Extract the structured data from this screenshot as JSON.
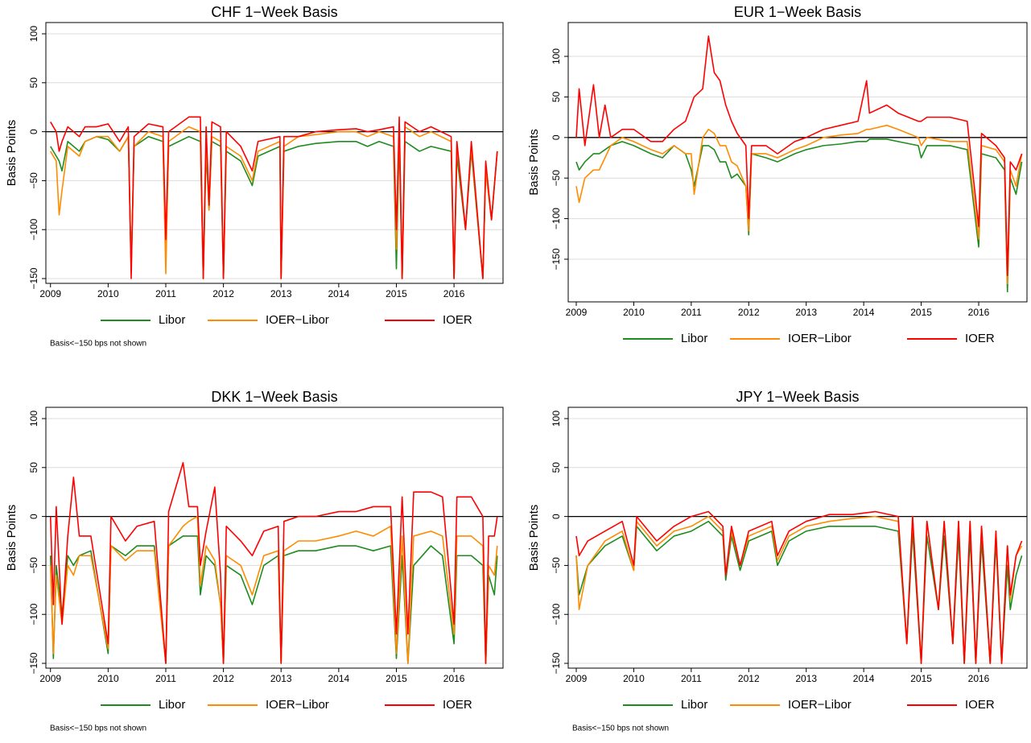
{
  "chart_data": [
    {
      "type": "line",
      "title": "CHF 1−Week Basis",
      "y_label": "Basis Points",
      "note": "Basis<−150 bps not shown",
      "xlim": [
        2008.92,
        2016.85
      ],
      "ylim": [
        -154.9,
        111.5
      ],
      "xticks": [
        2009,
        2010,
        2011,
        2012,
        2013,
        2014,
        2015,
        2016
      ],
      "yticks": [
        {
          "value": -150,
          "label": "−150"
        },
        {
          "value": -100,
          "label": "−100"
        },
        {
          "value": -50,
          "label": "−50"
        },
        0,
        50,
        100
      ],
      "grid": true,
      "zero_line": true,
      "x": [
        2009.0,
        2009.1,
        2009.15,
        2009.2,
        2009.3,
        2009.5,
        2009.6,
        2009.8,
        2010.0,
        2010.2,
        2010.35,
        2010.4,
        2010.45,
        2010.7,
        2010.95,
        2011.0,
        2011.05,
        2011.4,
        2011.6,
        2011.65,
        2011.7,
        2011.75,
        2011.8,
        2011.95,
        2012.0,
        2012.05,
        2012.3,
        2012.5,
        2012.6,
        2012.98,
        2013.0,
        2013.05,
        2013.3,
        2013.6,
        2014.0,
        2014.3,
        2014.5,
        2014.7,
        2014.95,
        2015.0,
        2015.05,
        2015.1,
        2015.15,
        2015.4,
        2015.6,
        2015.95,
        2016.0,
        2016.05,
        2016.2,
        2016.3,
        2016.5,
        2016.55,
        2016.65,
        2016.75
      ],
      "series": [
        {
          "name": "Libor",
          "color": "#1e8c1e",
          "values": [
            -15,
            -25,
            -30,
            -40,
            -10,
            -20,
            -10,
            -5,
            -8,
            -20,
            -5,
            -140,
            -15,
            -5,
            -10,
            -130,
            -15,
            -5,
            -10,
            -150,
            -20,
            -80,
            -10,
            -15,
            -150,
            -20,
            -30,
            -55,
            -25,
            -15,
            -150,
            -20,
            -15,
            -12,
            -10,
            -10,
            -15,
            -10,
            -15,
            -140,
            -5,
            -150,
            -10,
            -20,
            -15,
            -20,
            -150,
            -25,
            -100,
            -20,
            -150,
            -40,
            -90,
            -20
          ]
        },
        {
          "name": "IOER−Libor",
          "color": "#ff8c00",
          "values": [
            -20,
            -30,
            -85,
            -60,
            -15,
            -25,
            -10,
            -5,
            -5,
            -20,
            -5,
            -140,
            -15,
            0,
            -5,
            -145,
            -10,
            5,
            0,
            -150,
            -10,
            -80,
            -5,
            -10,
            -150,
            -15,
            -25,
            -50,
            -20,
            -10,
            -150,
            -15,
            -5,
            -3,
            0,
            0,
            -5,
            0,
            -5,
            -120,
            10,
            -150,
            5,
            -5,
            0,
            -10,
            -150,
            -15,
            -100,
            -15,
            -150,
            -40,
            -90,
            -20
          ]
        },
        {
          "name": "IOER",
          "color": "#ff0000",
          "values": [
            10,
            0,
            -20,
            -10,
            5,
            -5,
            5,
            5,
            8,
            -10,
            5,
            -150,
            -5,
            8,
            5,
            -110,
            0,
            15,
            15,
            -150,
            5,
            -75,
            10,
            5,
            -150,
            0,
            -15,
            -40,
            -10,
            -5,
            -150,
            -5,
            -5,
            0,
            2,
            3,
            0,
            2,
            5,
            -100,
            15,
            -150,
            10,
            0,
            5,
            -5,
            -150,
            -10,
            -100,
            -10,
            -150,
            -30,
            -90,
            -20
          ]
        }
      ]
    },
    {
      "type": "line",
      "title": "EUR 1−Week Basis",
      "y_label": "Basis Points",
      "xlim": [
        2008.86,
        2016.84
      ],
      "ylim": [
        -202.6,
        141.7
      ],
      "xticks": [
        2009,
        2010,
        2011,
        2012,
        2013,
        2014,
        2015,
        2016
      ],
      "yticks": [
        {
          "value": -150,
          "label": "−150"
        },
        {
          "value": -100,
          "label": "−100"
        },
        {
          "value": -50,
          "label": "−50"
        },
        0,
        50,
        100
      ],
      "grid": true,
      "zero_line": true,
      "x": [
        2009.0,
        2009.05,
        2009.15,
        2009.3,
        2009.4,
        2009.5,
        2009.6,
        2009.8,
        2010.0,
        2010.3,
        2010.5,
        2010.7,
        2010.9,
        2011.0,
        2011.05,
        2011.2,
        2011.3,
        2011.4,
        2011.5,
        2011.6,
        2011.7,
        2011.8,
        2011.95,
        2012.0,
        2012.05,
        2012.3,
        2012.5,
        2012.8,
        2013.0,
        2013.3,
        2013.6,
        2013.9,
        2014.05,
        2014.1,
        2014.4,
        2014.6,
        2014.95,
        2015.0,
        2015.1,
        2015.5,
        2015.8,
        2016.0,
        2016.05,
        2016.3,
        2016.45,
        2016.5,
        2016.55,
        2016.65,
        2016.75
      ],
      "series": [
        {
          "name": "Libor",
          "color": "#1e8c1e",
          "values": [
            -30,
            -40,
            -30,
            -20,
            -20,
            -15,
            -10,
            -5,
            -10,
            -20,
            -25,
            -10,
            -20,
            -40,
            -60,
            -10,
            -10,
            -15,
            -30,
            -30,
            -50,
            -45,
            -60,
            -120,
            -20,
            -25,
            -30,
            -20,
            -15,
            -10,
            -8,
            -5,
            -5,
            -2,
            -2,
            -5,
            -10,
            -25,
            -10,
            -10,
            -15,
            -135,
            -20,
            -25,
            -40,
            -190,
            -50,
            -70,
            -30
          ]
        },
        {
          "name": "IOER−Libor",
          "color": "#ff8c00",
          "values": [
            -60,
            -80,
            -50,
            -40,
            -40,
            -25,
            -10,
            0,
            -5,
            -15,
            -20,
            -10,
            -20,
            -20,
            -70,
            0,
            10,
            5,
            -10,
            -10,
            -30,
            -35,
            -60,
            -115,
            -20,
            -20,
            -25,
            -15,
            -10,
            0,
            3,
            5,
            10,
            10,
            15,
            10,
            0,
            -10,
            0,
            -5,
            -5,
            -125,
            -10,
            -15,
            -30,
            -180,
            -40,
            -60,
            -20
          ]
        },
        {
          "name": "IOER",
          "color": "#ff0000",
          "values": [
            0,
            60,
            -10,
            65,
            0,
            40,
            0,
            10,
            10,
            -5,
            -5,
            10,
            20,
            40,
            50,
            60,
            125,
            80,
            70,
            40,
            20,
            5,
            -10,
            -100,
            -10,
            -10,
            -20,
            -5,
            0,
            10,
            15,
            20,
            70,
            30,
            40,
            30,
            20,
            20,
            25,
            25,
            20,
            -110,
            5,
            -10,
            -25,
            -170,
            -30,
            -40,
            -20
          ]
        }
      ]
    },
    {
      "type": "line",
      "title": "DKK 1−Week Basis",
      "y_label": "Basis Points",
      "note": "Basis<−150 bps not shown",
      "xlim": [
        2008.92,
        2016.85
      ],
      "ylim": [
        -154.9,
        111.5
      ],
      "xticks": [
        2009,
        2010,
        2011,
        2012,
        2013,
        2014,
        2015,
        2016
      ],
      "yticks": [
        {
          "value": -150,
          "label": "−150"
        },
        {
          "value": -100,
          "label": "−100"
        },
        {
          "value": -50,
          "label": "−50"
        },
        0,
        50,
        100
      ],
      "grid": true,
      "zero_line": true,
      "x": [
        2009.0,
        2009.05,
        2009.1,
        2009.2,
        2009.3,
        2009.4,
        2009.5,
        2009.7,
        2010.0,
        2010.05,
        2010.3,
        2010.5,
        2010.8,
        2011.0,
        2011.05,
        2011.3,
        2011.4,
        2011.55,
        2011.6,
        2011.7,
        2011.85,
        2011.95,
        2012.0,
        2012.05,
        2012.3,
        2012.5,
        2012.7,
        2012.95,
        2013.0,
        2013.05,
        2013.3,
        2013.6,
        2014.0,
        2014.3,
        2014.6,
        2014.9,
        2015.0,
        2015.1,
        2015.2,
        2015.3,
        2015.6,
        2015.8,
        2016.0,
        2016.05,
        2016.3,
        2016.5,
        2016.55,
        2016.6,
        2016.7,
        2016.75
      ],
      "series": [
        {
          "name": "Libor",
          "color": "#1e8c1e",
          "values": [
            -40,
            -145,
            -50,
            -100,
            -40,
            -50,
            -40,
            -35,
            -140,
            -30,
            -40,
            -30,
            -30,
            -150,
            -30,
            -20,
            -20,
            -20,
            -80,
            -40,
            -50,
            -90,
            -150,
            -50,
            -60,
            -90,
            -50,
            -40,
            -150,
            -40,
            -35,
            -35,
            -30,
            -30,
            -35,
            -30,
            -145,
            -40,
            -150,
            -50,
            -30,
            -40,
            -130,
            -40,
            -40,
            -50,
            -150,
            -60,
            -80,
            -40
          ]
        },
        {
          "name": "IOER−Libor",
          "color": "#ff8c00",
          "values": [
            -50,
            -140,
            -60,
            -110,
            -50,
            -60,
            -40,
            -40,
            -135,
            -30,
            -45,
            -35,
            -35,
            -150,
            -30,
            -10,
            -5,
            0,
            -70,
            -30,
            -45,
            -90,
            -150,
            -40,
            -50,
            -80,
            -40,
            -35,
            -150,
            -35,
            -25,
            -25,
            -20,
            -15,
            -20,
            -10,
            -140,
            -20,
            -150,
            -20,
            -15,
            -20,
            -120,
            -20,
            -20,
            -30,
            -150,
            -50,
            -60,
            -30
          ]
        },
        {
          "name": "IOER",
          "color": "#ff0000",
          "values": [
            0,
            -90,
            10,
            -110,
            -20,
            40,
            -20,
            -20,
            -130,
            0,
            -25,
            -10,
            -5,
            -150,
            5,
            55,
            10,
            10,
            -50,
            -15,
            30,
            -60,
            -150,
            -10,
            -25,
            -40,
            -15,
            -10,
            -150,
            -5,
            0,
            0,
            5,
            5,
            10,
            10,
            -120,
            20,
            -120,
            25,
            25,
            20,
            -110,
            20,
            20,
            0,
            -150,
            -20,
            -20,
            0
          ]
        }
      ]
    },
    {
      "type": "line",
      "title": "JPY 1−Week Basis",
      "y_label": "Basis Points",
      "note": "Basis<−150 bps not shown",
      "xlim": [
        2008.86,
        2016.84
      ],
      "ylim": [
        -154.9,
        111.5
      ],
      "xticks": [
        2009,
        2010,
        2011,
        2012,
        2013,
        2014,
        2015,
        2016
      ],
      "yticks": [
        {
          "value": -150,
          "label": "−150"
        },
        {
          "value": -100,
          "label": "−100"
        },
        {
          "value": -50,
          "label": "−50"
        },
        0,
        50,
        100
      ],
      "grid": true,
      "zero_line": true,
      "x": [
        2009.0,
        2009.05,
        2009.2,
        2009.5,
        2009.8,
        2010.0,
        2010.05,
        2010.4,
        2010.7,
        2011.0,
        2011.3,
        2011.55,
        2011.6,
        2011.7,
        2011.85,
        2012.0,
        2012.4,
        2012.5,
        2012.7,
        2013.0,
        2013.4,
        2013.8,
        2014.2,
        2014.6,
        2014.75,
        2014.85,
        2015.0,
        2015.1,
        2015.3,
        2015.4,
        2015.55,
        2015.65,
        2015.75,
        2015.85,
        2015.95,
        2016.05,
        2016.2,
        2016.3,
        2016.4,
        2016.5,
        2016.55,
        2016.65,
        2016.75
      ],
      "series": [
        {
          "name": "Libor",
          "color": "#1e8c1e",
          "values": [
            -40,
            -80,
            -50,
            -30,
            -20,
            -55,
            -10,
            -35,
            -20,
            -15,
            -5,
            -20,
            -65,
            -20,
            -55,
            -25,
            -15,
            -50,
            -25,
            -15,
            -10,
            -10,
            -10,
            -15,
            -130,
            -15,
            -150,
            -20,
            -95,
            -20,
            -130,
            -20,
            -150,
            -20,
            -150,
            -25,
            -150,
            -25,
            -150,
            -50,
            -95,
            -60,
            -40
          ]
        },
        {
          "name": "IOER−Libor",
          "color": "#ff8c00",
          "values": [
            -40,
            -95,
            -50,
            -25,
            -15,
            -55,
            -5,
            -30,
            -15,
            -10,
            0,
            -15,
            -60,
            -15,
            -50,
            -20,
            -10,
            -45,
            -20,
            -10,
            -5,
            -2,
            0,
            -5,
            -130,
            0,
            -150,
            -5,
            -95,
            -5,
            -130,
            -5,
            -150,
            -5,
            -150,
            -10,
            -150,
            -15,
            -150,
            -30,
            -85,
            -40,
            -30
          ]
        },
        {
          "name": "IOER",
          "color": "#ff0000",
          "values": [
            -20,
            -40,
            -25,
            -15,
            -5,
            -50,
            0,
            -25,
            -10,
            0,
            5,
            -10,
            -60,
            -10,
            -50,
            -15,
            -5,
            -40,
            -15,
            -5,
            2,
            2,
            5,
            0,
            -130,
            0,
            -150,
            -5,
            -95,
            -5,
            -130,
            -5,
            -150,
            -5,
            -150,
            -10,
            -150,
            -15,
            -150,
            -30,
            -80,
            -40,
            -25
          ]
        }
      ]
    }
  ]
}
